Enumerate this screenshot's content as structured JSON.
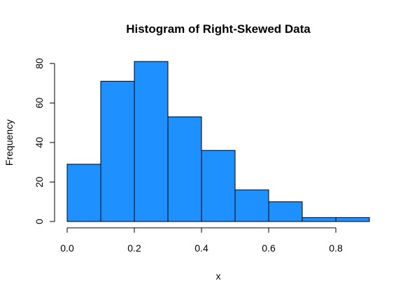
{
  "chart_data": {
    "type": "bar",
    "title": "Histogram of Right-Skewed Data",
    "xlabel": "x",
    "ylabel": "Frequency",
    "bins": [
      {
        "start": 0.0,
        "end": 0.1,
        "count": 29
      },
      {
        "start": 0.1,
        "end": 0.2,
        "count": 71
      },
      {
        "start": 0.2,
        "end": 0.3,
        "count": 81
      },
      {
        "start": 0.3,
        "end": 0.4,
        "count": 53
      },
      {
        "start": 0.4,
        "end": 0.5,
        "count": 36
      },
      {
        "start": 0.5,
        "end": 0.6,
        "count": 16
      },
      {
        "start": 0.6,
        "end": 0.7,
        "count": 10
      },
      {
        "start": 0.7,
        "end": 0.8,
        "count": 2
      },
      {
        "start": 0.8,
        "end": 0.9,
        "count": 2
      }
    ],
    "xlim": [
      0.0,
      0.9
    ],
    "ylim": [
      0,
      81
    ],
    "x_ticks": [
      0.0,
      0.2,
      0.4,
      0.6,
      0.8
    ],
    "x_tick_labels": [
      "0.0",
      "0.2",
      "0.4",
      "0.6",
      "0.8"
    ],
    "y_ticks": [
      0,
      20,
      40,
      60,
      80
    ],
    "y_tick_labels": [
      "0",
      "20",
      "40",
      "60",
      "80"
    ],
    "bar_color": "#1e90ff",
    "edge_color": "#000000",
    "grid": false,
    "legend": "none"
  }
}
